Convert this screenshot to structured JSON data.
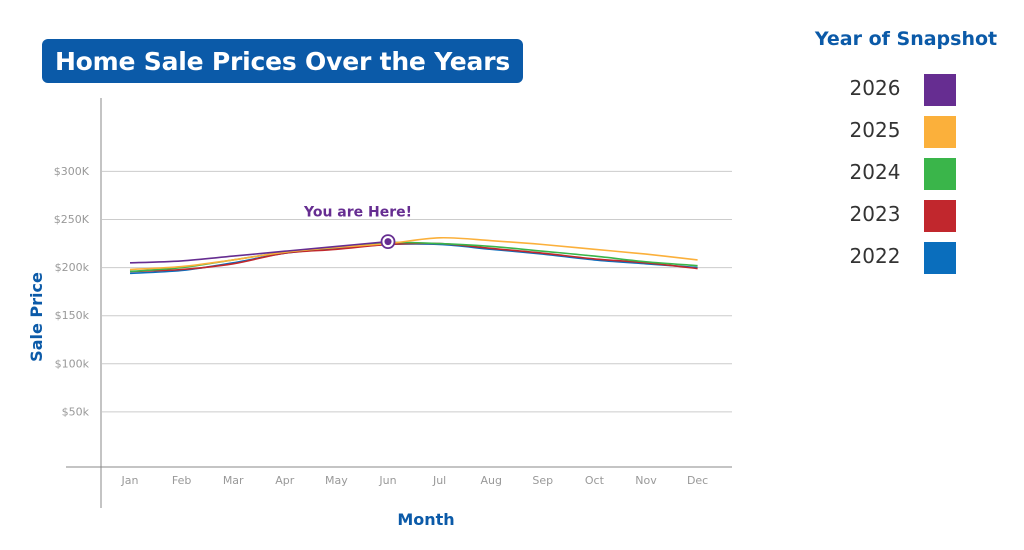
{
  "chart_data": {
    "type": "line",
    "title": "Home Sale Prices Over the Years",
    "xlabel": "Month",
    "ylabel": "Sale Price",
    "categories": [
      "Jan",
      "Feb",
      "Mar",
      "Apr",
      "May",
      "Jun",
      "Jul",
      "Aug",
      "Sep",
      "Oct",
      "Nov",
      "Dec"
    ],
    "y_ticks": [
      {
        "value": 300000,
        "label": "$300K"
      },
      {
        "value": 250000,
        "label": "$250K"
      },
      {
        "value": 200000,
        "label": "$200k"
      },
      {
        "value": 150000,
        "label": "$150k"
      },
      {
        "value": 100000,
        "label": "$100k"
      },
      {
        "value": 50000,
        "label": "$50k"
      }
    ],
    "ylim": [
      0,
      340000
    ],
    "grid": true,
    "legend": {
      "title": "Year of Snapshot",
      "position": "right"
    },
    "series": [
      {
        "name": "2022",
        "color": "#0a6ebd",
        "values": [
          194000,
          197000,
          205000,
          215000,
          220000,
          224000,
          224000,
          219000,
          214000,
          208000,
          204000,
          200000
        ]
      },
      {
        "name": "2023",
        "color": "#c1272d",
        "values": [
          196000,
          198000,
          204000,
          215000,
          219000,
          224000,
          225000,
          220000,
          215000,
          209000,
          205000,
          199000
        ]
      },
      {
        "name": "2024",
        "color": "#3ab54a",
        "values": [
          196000,
          200000,
          208000,
          216000,
          221000,
          226000,
          225000,
          222000,
          217000,
          212000,
          206000,
          202000
        ]
      },
      {
        "name": "2025",
        "color": "#fbb03b",
        "values": [
          198000,
          201000,
          208000,
          216000,
          221000,
          225000,
          231000,
          228000,
          224000,
          219000,
          214000,
          208000
        ]
      },
      {
        "name": "2026",
        "color": "#662d91",
        "values": [
          205000,
          207000,
          212000,
          217000,
          222000,
          227000,
          null,
          null,
          null,
          null,
          null,
          null
        ]
      }
    ],
    "annotation": {
      "text": "You are Here!",
      "category": "Jun",
      "value": 227000,
      "color": "#662d91"
    }
  },
  "theme": {
    "title_bg": "#0b5aa8",
    "accent": "#0b5aa8",
    "grid": "#cccccc",
    "axis": "#888888"
  }
}
